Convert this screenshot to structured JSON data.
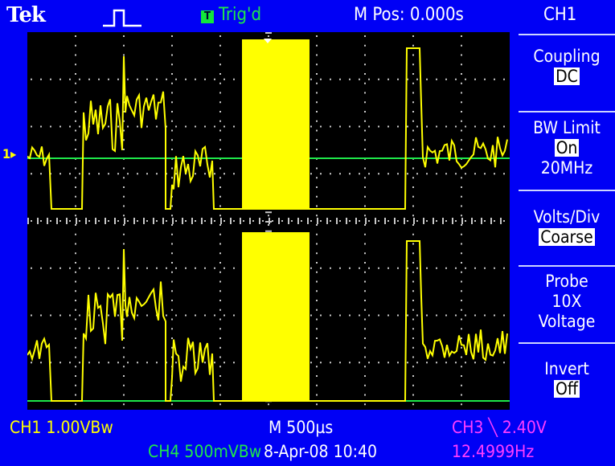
{
  "header": {
    "brand": "Tek",
    "acquisition_icon": "single-pulse-icon",
    "trigger_icon_letter": "T",
    "trigger_status": "Trig'd",
    "position": "M Pos: 0.000s",
    "channel": "CH1"
  },
  "side_menu": {
    "coupling": {
      "label": "Coupling",
      "value": "DC"
    },
    "bw_limit": {
      "label": "BW Limit",
      "value": "On",
      "extra": "20MHz"
    },
    "volts_div": {
      "label": "Volts/Div",
      "value": "Coarse"
    },
    "probe": {
      "label": "Probe",
      "value": "10X",
      "extra": "Voltage"
    },
    "invert": {
      "label": "Invert",
      "value": "Off"
    }
  },
  "footer": {
    "ch1_scale": "CH1  1.00VBw",
    "timebase": "M 500µs",
    "trigger_info": "CH3 ╲ 2.40V",
    "ch4_scale": "CH4  500mVBw",
    "date_time": "8-Apr-08 10:40",
    "frequency": "12.4999Hz"
  },
  "ground_marker": "1▸",
  "colors": {
    "background": "#0000f5",
    "screen": "#000000",
    "ch1_trace": "#ffff00",
    "ch4_trace": "#1ee84a",
    "ch3": "#ff3dff",
    "grid": "#c8c8c8"
  }
}
